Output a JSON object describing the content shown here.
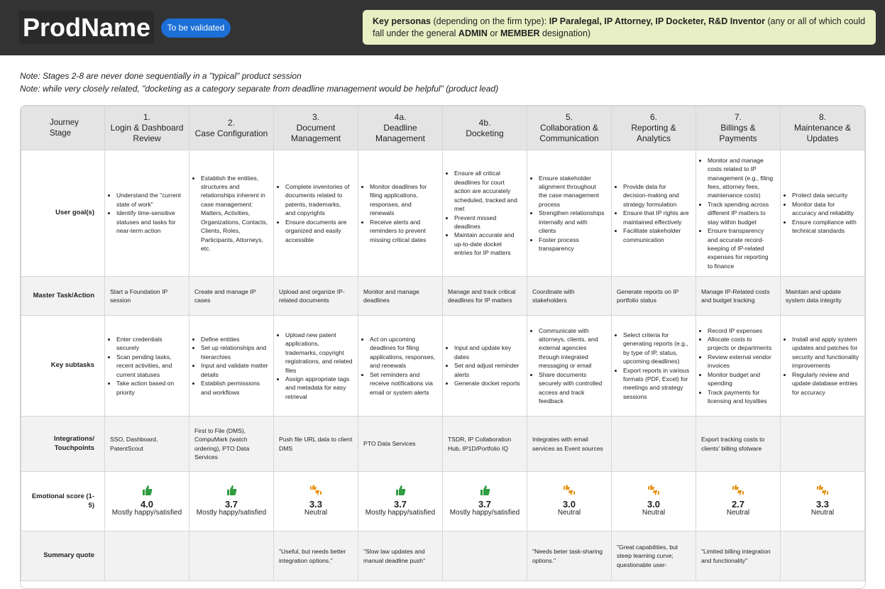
{
  "header": {
    "title": "ProdName",
    "badge": "To be validated",
    "personas": [
      {
        "text": "Key personas",
        "bold": true
      },
      {
        "text": " (depending on the firm type):  ",
        "bold": false
      },
      {
        "text": "IP Paralegal, IP Attorney, IP Docketer, R&D Inventor",
        "bold": true
      },
      {
        "text": " (any or all of which could fall under the general ",
        "bold": false
      },
      {
        "text": "ADMIN",
        "bold": true
      },
      {
        "text": " or ",
        "bold": false
      },
      {
        "text": "MEMBER",
        "bold": true
      },
      {
        "text": " designation)",
        "bold": false
      }
    ]
  },
  "notes": [
    "Note:  Stages 2-8 are never done sequentially in a \"typical\" product session",
    "Note:  while very closely related, \"docketing as a category separate from deadline management would be helpful\" (product lead)"
  ],
  "table": {
    "corner": "Journey Stage",
    "stages": [
      {
        "number": "1.",
        "name": "Login & Dashboard Review"
      },
      {
        "number": "2.",
        "name": "Case Configuration"
      },
      {
        "number": "3.",
        "name": "Document Management"
      },
      {
        "number": "4a.",
        "name": "Deadline Management"
      },
      {
        "number": "4b.",
        "name": "Docketing"
      },
      {
        "number": "5.",
        "name": "Collaboration & Communication"
      },
      {
        "number": "6.",
        "name": "Reporting & Analytics"
      },
      {
        "number": "7.",
        "name": "Billings & Payments"
      },
      {
        "number": "8.",
        "name": "Maintenance & Updates"
      }
    ],
    "rows": [
      {
        "label": "User goal(s)",
        "kind": "bullets",
        "cells": [
          [
            "Understand the \"current state of work\"",
            "Identify time-sensitive statuses and tasks for near-term action"
          ],
          [
            "Establish the entities, structures and relationships inherent in case management: Matters, Activities, Organizations, Contacts, Clients, Roles, Participants, Attorneys, etc."
          ],
          [
            "Complete inventories of documents related to patents, trademarks, and copyrights",
            "Ensure documents are organized and easily accessible"
          ],
          [
            "Monitor deadlines for filing applications, responses, and renewals",
            "Receive alerts and reminders to prevent missing critical dates"
          ],
          [
            "Ensure all critical deadlines for court action are accurately scheduled, tracked and met",
            "Prevent missed deadlines",
            "Maintain accurate and up-to-date docket entries for IP matters"
          ],
          [
            "Ensure stakeholder alignment throughout the case management process",
            "Strengthen relationships internally and with clients",
            "Foster process transparency"
          ],
          [
            "Provide data for decision-making and strategy formulation",
            "Ensure that IP rights are maintained effectively",
            "Facilitate stakeholder communication"
          ],
          [
            "Monitor and manage costs related to IP management (e.g., filing fees, attorney fees, maintenance costs)",
            "Track spending across different IP matters to stay within budget",
            "Ensure transparency and accurate record-keeping of IP-related expenses for reporting to finance"
          ],
          [
            "Protect data security",
            "Monitor data for accuracy and reliability",
            "Ensure compliance with technical standards"
          ]
        ]
      },
      {
        "label": "Master Task/Action",
        "kind": "text",
        "cells": [
          "Start a Foundation IP session",
          "Create and manage IP cases",
          "Upload and organize IP-related documents",
          "Monitor and manage deadlines",
          "Manage and track critical deadlines for IP matters",
          "Coordinate with stakeholders",
          "Generate reports on IP portfolio status",
          "Manage IP-Related costs and budget tracking",
          "Maintain and update system data integrity"
        ]
      },
      {
        "label": "Key subtasks",
        "kind": "bullets",
        "cells": [
          [
            "Enter credentials securely",
            "Scan pending tasks, recent activities, and current statuses",
            "Take action based on priority"
          ],
          [
            "Define entities",
            "Set up relationships and hierarchies",
            "Input and validate matter details",
            "Establish permissions and workflows"
          ],
          [
            "Upload new patent applications, trademarks, copyright registrations, and related files",
            "Assign appropriate tags and metadata for easy retrieval"
          ],
          [
            "Act on upcoming deadlines for filing applications, responses, and renewals",
            "Set reminders and receive notifications via email or system alerts"
          ],
          [
            "Input and update key dates",
            "Set and adjust reminder alerts",
            "Generate docket reports"
          ],
          [
            "Communicate with attorneys, clients, and external agencies through integrated messaging or email",
            "Share documents securely with controlled access and track feedback"
          ],
          [
            "Select criteria for generating reports (e.g., by type of IP, status, upcoming deadlines)",
            "Export reports in various formats (PDF, Excel) for meetings and strategy sessions"
          ],
          [
            "Record IP expenses",
            "Allocate costs to projects or departments",
            "Review external vendor invoices",
            "Monitor budget and spending",
            "Track payments for licensing and loyalties"
          ],
          [
            "Install and apply system updates and patches for security and functionality improvements",
            "Regularly review and update database entries for accuracy"
          ]
        ]
      },
      {
        "label": "Integrations/ Touchpoints",
        "kind": "text",
        "cells": [
          "SSO, Dashboard, PatentScout",
          "First to File (DMS), CompuMark (watch ordering), PTO Data Services",
          "Push file URL data to client DMS",
          "PTO Data Services",
          "TSDR, IP Collaboration Hub, IP1D/Portfolio IQ",
          "Integrates with email services as Event sources",
          null,
          "Export tracking costs to clients' billing sfotware",
          null
        ]
      },
      {
        "label": "Emotional score (1-5)",
        "kind": "score",
        "cells": [
          {
            "sentiment": "positive",
            "score": "4.0",
            "mood": "Mostly happy/satisfied"
          },
          {
            "sentiment": "positive",
            "score": "3.7",
            "mood": "Mostly happy/satisfied"
          },
          {
            "sentiment": "mixed",
            "score": "3.3",
            "mood": "Neutral"
          },
          {
            "sentiment": "positive",
            "score": "3.7",
            "mood": "Mostly happy/satisfied"
          },
          {
            "sentiment": "positive",
            "score": "3.7",
            "mood": "Mostly happy/satisfied"
          },
          {
            "sentiment": "mixed",
            "score": "3.0",
            "mood": "Neutral"
          },
          {
            "sentiment": "mixed",
            "score": "3.0",
            "mood": "Neutral"
          },
          {
            "sentiment": "mixed",
            "score": "2.7",
            "mood": "Neutral"
          },
          {
            "sentiment": "mixed",
            "score": "3.3",
            "mood": "Neutral"
          }
        ]
      },
      {
        "label": "Summary quote",
        "kind": "text",
        "cells": [
          null,
          null,
          "\"Useful, but needs better integration options.\"",
          "\"Slow law updates and manual deadline push\"",
          null,
          "\"Needs beter task-sharing options.\"",
          "\"Great capabilities, but steep learning curve; questionable user-",
          "\"Limited billing integration and functionality\"",
          null
        ]
      }
    ]
  }
}
